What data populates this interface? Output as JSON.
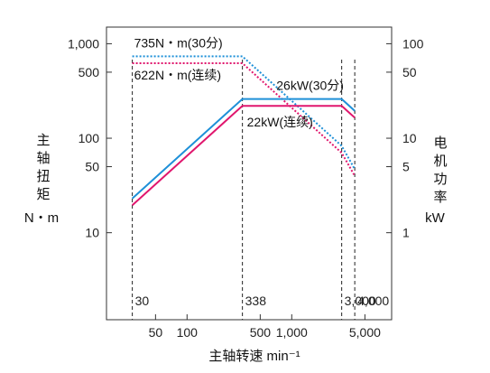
{
  "chart_data": {
    "type": "line",
    "x_scale": "log",
    "y_scale": "log",
    "xlim": [
      17,
      9000
    ],
    "left_ylim": [
      1.2,
      1500
    ],
    "right_ylim": [
      0.12,
      150
    ],
    "xlabel": "主轴转速 min⁻¹",
    "left_ylabel_chars": [
      "主",
      "轴",
      "扭",
      "矩"
    ],
    "left_ylabel_unit": "N・m",
    "right_ylabel_chars": [
      "电",
      "机",
      "功",
      "率"
    ],
    "right_ylabel_unit": "kW",
    "x_ticks": [
      {
        "value": 50,
        "label": "50"
      },
      {
        "value": 100,
        "label": "100"
      },
      {
        "value": 500,
        "label": "500"
      },
      {
        "value": 1000,
        "label": "1,000"
      },
      {
        "value": 5000,
        "label": "5,000"
      }
    ],
    "left_ticks": [
      {
        "value": 1000,
        "label": "1,000"
      },
      {
        "value": 500,
        "label": "500"
      },
      {
        "value": 100,
        "label": "100"
      },
      {
        "value": 50,
        "label": "50"
      },
      {
        "value": 10,
        "label": "10"
      }
    ],
    "right_ticks": [
      {
        "value": 100,
        "label": "100"
      },
      {
        "value": 50,
        "label": "50"
      },
      {
        "value": 10,
        "label": "10"
      },
      {
        "value": 5,
        "label": "5"
      },
      {
        "value": 1,
        "label": "1"
      }
    ],
    "reference_lines": [
      {
        "x": 30,
        "label": "30"
      },
      {
        "x": 338,
        "label": "338"
      },
      {
        "x": 3000,
        "label": "3,000"
      },
      {
        "x": 4000,
        "label": "4,000"
      }
    ],
    "series": [
      {
        "name": "735N・m(30分)",
        "axis": "left",
        "style": "dotted",
        "color": "#1e90d8",
        "x": [
          30,
          338,
          3000,
          4000
        ],
        "y": [
          735,
          735,
          83,
          47
        ]
      },
      {
        "name": "622N・m(连续)",
        "axis": "left",
        "style": "dotted",
        "color": "#e0176e",
        "x": [
          30,
          338,
          3000,
          4000
        ],
        "y": [
          622,
          622,
          70,
          40
        ]
      },
      {
        "name": "26kW(30分)",
        "axis": "right",
        "style": "solid",
        "color": "#1e90d8",
        "x": [
          30,
          338,
          3000,
          4000
        ],
        "y": [
          2.3,
          26,
          26,
          19.5
        ]
      },
      {
        "name": "22kW(连续)",
        "axis": "right",
        "style": "solid",
        "color": "#e0176e",
        "x": [
          30,
          338,
          3000,
          4000
        ],
        "y": [
          1.95,
          22,
          22,
          16.5
        ]
      }
    ],
    "annotations": [
      {
        "text": "735N・m(30分)",
        "x": 30,
        "y": 735,
        "axis": "left",
        "anchor": "above"
      },
      {
        "text": "622N・m(连续)",
        "x": 30,
        "y": 622,
        "axis": "left",
        "anchor": "below"
      },
      {
        "text": "26kW(30分)",
        "x": 2900,
        "y": 26,
        "axis": "right",
        "anchor": "above"
      },
      {
        "text": "22kW(连续)",
        "x": 338,
        "y": 22,
        "axis": "right",
        "anchor": "below"
      }
    ]
  }
}
